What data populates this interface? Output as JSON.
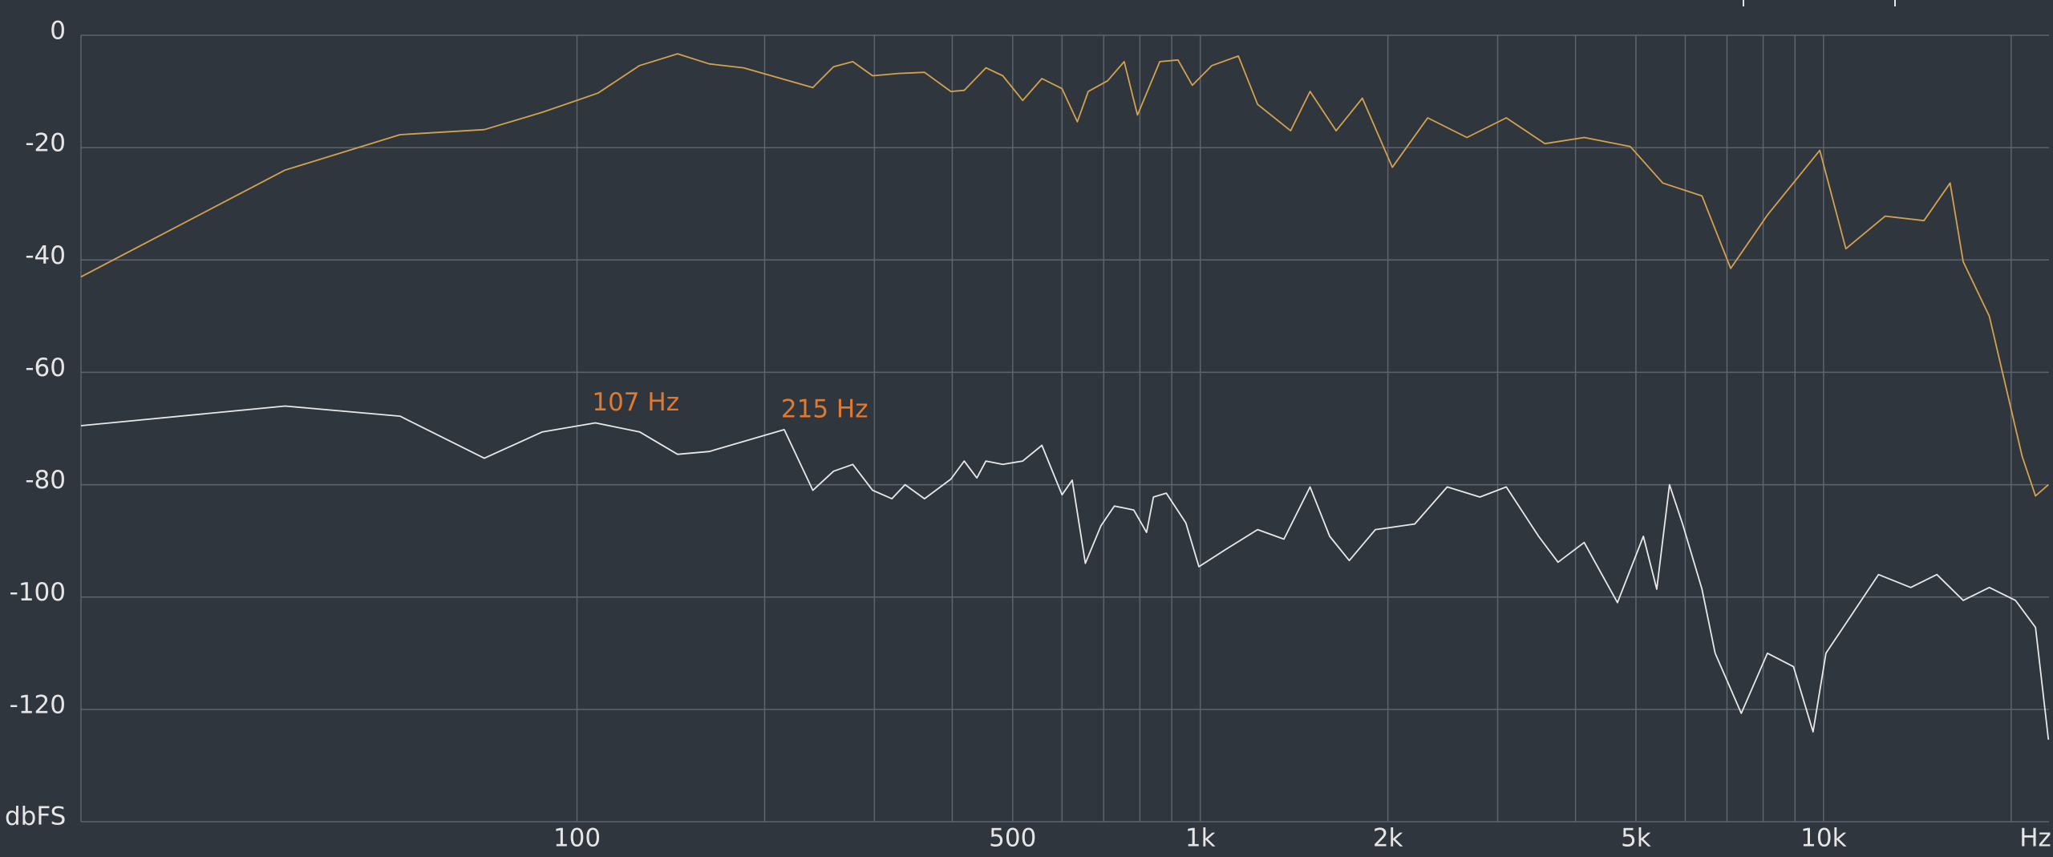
{
  "chart_data": {
    "type": "line",
    "x_label": "Hz",
    "y_label": "dbFS",
    "xscale": "log",
    "xlim": [
      16,
      23000
    ],
    "ylim": [
      -140,
      0
    ],
    "xticks": [
      100,
      500,
      {
        "value": 1000,
        "label": "1k"
      },
      {
        "value": 2000,
        "label": "2k"
      },
      {
        "value": 5000,
        "label": "5k"
      },
      {
        "value": 10000,
        "label": "10k"
      }
    ],
    "xgrid": [
      100,
      200,
      300,
      400,
      500,
      600,
      700,
      800,
      900,
      1000,
      2000,
      3000,
      4000,
      5000,
      6000,
      7000,
      8000,
      9000,
      10000,
      20000
    ],
    "yticks": [
      0,
      -20,
      -40,
      -60,
      -80,
      -100,
      -120
    ],
    "grid": true,
    "series": [
      {
        "color": "#d4a24c",
        "x": [
          16,
          34,
          52,
          71,
          88,
          108,
          126,
          145,
          163,
          185,
          239,
          258,
          277,
          298,
          328,
          361,
          398,
          418,
          453,
          482,
          519,
          557,
          600,
          635,
          661,
          710,
          755,
          793,
          861,
          921,
          971,
          1044,
          1151,
          1236,
          1396,
          1500,
          1652,
          1820,
          2033,
          2317,
          2678,
          3097,
          3573,
          4130,
          4895,
          5521,
          6383,
          7096,
          8128,
          9862,
          10860,
          12560,
          14490,
          15960,
          16750,
          18450,
          20830,
          21880,
          22950
        ],
        "values": [
          -43,
          -24,
          -17.7,
          -16.8,
          -13.7,
          -10.3,
          -5.4,
          -3.3,
          -5.1,
          -5.8,
          -9.3,
          -5.6,
          -4.7,
          -7.2,
          -6.8,
          -6.6,
          -10,
          -9.8,
          -5.8,
          -7.2,
          -11.6,
          -7.7,
          -9.5,
          -15.4,
          -10,
          -8.1,
          -4.7,
          -14.2,
          -4.7,
          -4.4,
          -8.9,
          -5.4,
          -3.7,
          -12.3,
          -17,
          -10,
          -17,
          -11.2,
          -23.5,
          -14.7,
          -18.2,
          -14.7,
          -19.3,
          -18.2,
          -19.8,
          -26.3,
          -28.6,
          -41.5,
          -32,
          -20.5,
          -38,
          -32.2,
          -33,
          -26.3,
          -40.3,
          -50,
          -75,
          -82,
          -80
        ]
      },
      {
        "color": "#e8e8e8",
        "x": [
          16,
          34,
          52,
          71,
          88,
          107,
          126,
          145,
          163,
          215,
          239,
          258,
          277,
          298,
          320,
          336,
          361,
          398,
          418,
          438,
          453,
          482,
          519,
          557,
          600,
          623,
          654,
          693,
          728,
          782,
          820,
          841,
          882,
          948,
          995,
          1096,
          1236,
          1362,
          1500,
          1613,
          1734,
          1910,
          2208,
          2490,
          2810,
          3097,
          3490,
          3750,
          4130,
          4670,
          5140,
          5400,
          5660,
          5940,
          6383,
          6700,
          7380,
          8128,
          8950,
          9620,
          10090,
          11120,
          12250,
          13800,
          15200,
          16750,
          18450,
          20320,
          21880,
          22950
        ],
        "values": [
          -69.5,
          -66,
          -67.8,
          -75.3,
          -70.6,
          -69,
          -70.6,
          -74.6,
          -74.1,
          -70.2,
          -81,
          -77.6,
          -76.4,
          -81,
          -82.5,
          -80,
          -82.5,
          -79,
          -75.8,
          -78.8,
          -75.8,
          -76.4,
          -75.8,
          -73,
          -81.8,
          -79.2,
          -94,
          -87.3,
          -83.8,
          -84.5,
          -88.5,
          -82.2,
          -81.5,
          -86.8,
          -94.6,
          -91.6,
          -88,
          -89.7,
          -80.4,
          -89.2,
          -93.5,
          -88,
          -87,
          -80.4,
          -82.2,
          -80.4,
          -89.2,
          -93.8,
          -90.3,
          -101,
          -89.2,
          -98.6,
          -80,
          -87,
          -98.6,
          -110,
          -120.7,
          -110,
          -112.4,
          -124,
          -110,
          -103,
          -96,
          -98.3,
          -96,
          -100.6,
          -98.3,
          -100.6,
          -105.4,
          -125.4
        ]
      }
    ],
    "annotations": [
      {
        "text": "107 Hz",
        "x": 107,
        "y": -69,
        "color": "#e07a30"
      },
      {
        "text": "215 Hz",
        "x": 215,
        "y": -70.2,
        "color": "#e07a30"
      }
    ]
  }
}
